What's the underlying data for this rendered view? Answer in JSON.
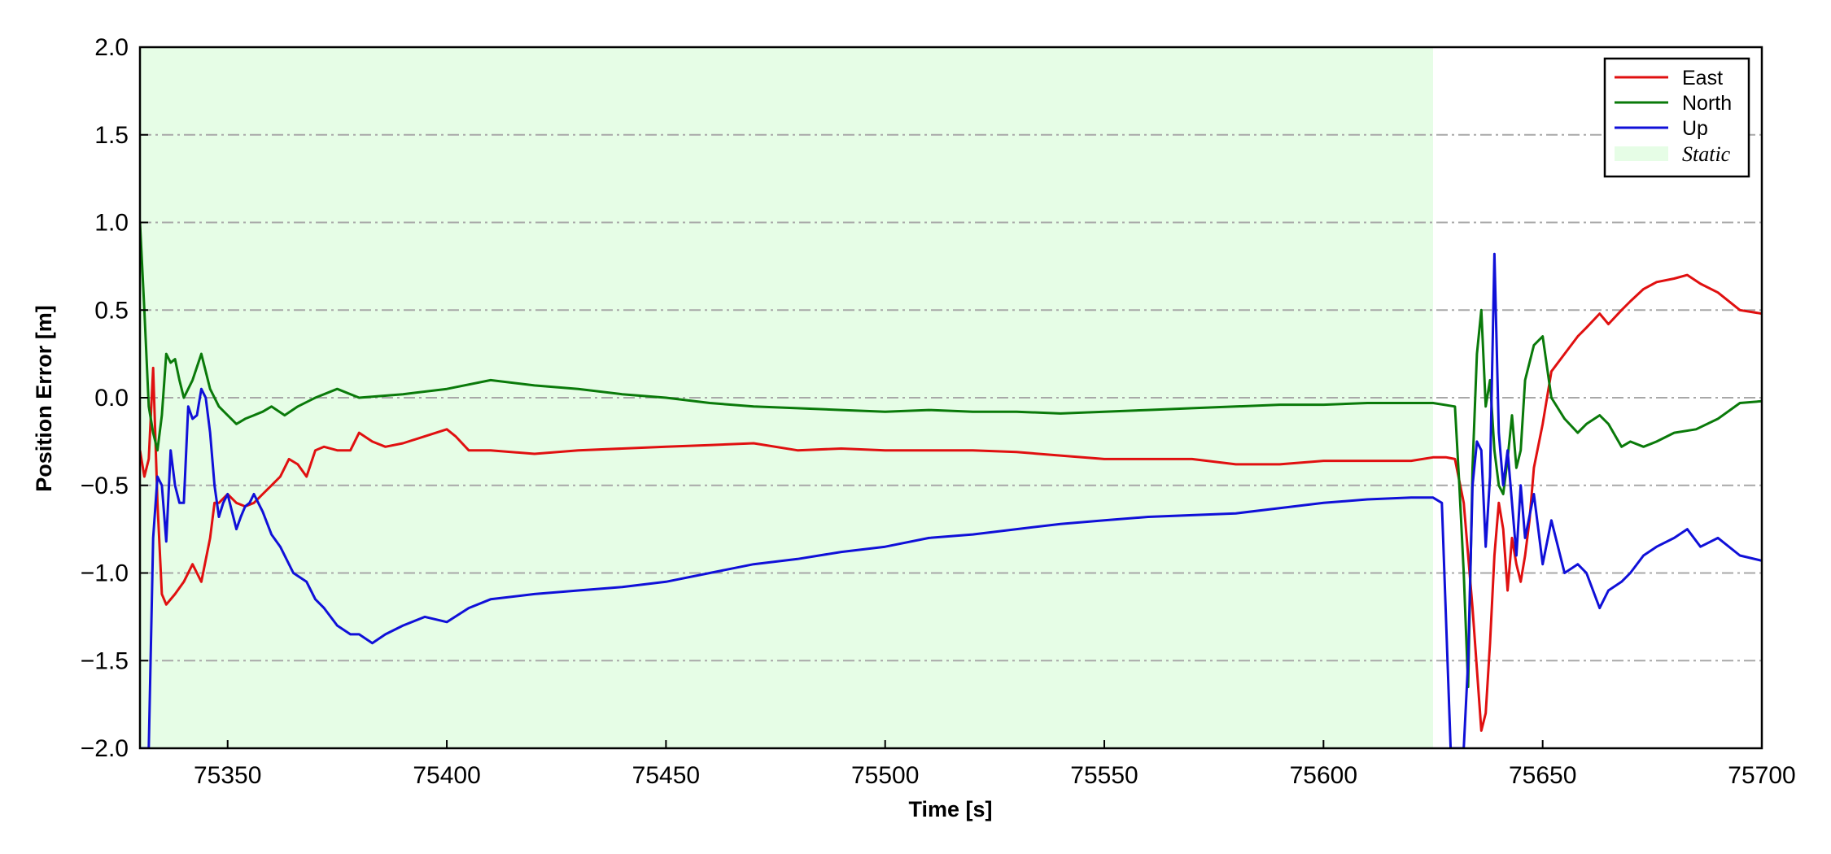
{
  "chart_data": {
    "type": "line",
    "xlabel": "Time [s]",
    "ylabel": "Position Error [m]",
    "xlim": [
      75330,
      75700
    ],
    "ylim": [
      -2.0,
      2.0
    ],
    "xticks": [
      75350,
      75400,
      75450,
      75500,
      75550,
      75600,
      75650,
      75700
    ],
    "xtick_labels": [
      "75350",
      "75400",
      "75450",
      "75500",
      "75550",
      "75600",
      "75650",
      "75700"
    ],
    "yticks": [
      2.0,
      1.5,
      1.0,
      0.5,
      0.0,
      -0.5,
      -1.0,
      -1.5,
      -2.0
    ],
    "ytick_labels": [
      "2.0",
      "1.5",
      "1.0",
      "0.5",
      "0.0",
      "−0.5",
      "−1.0",
      "−1.5",
      "−2.0"
    ],
    "grid": "horizontal dash-dot",
    "legend_position": "top-right",
    "shaded_region": {
      "name": "Static",
      "x": [
        75330,
        75625
      ],
      "color": "#e6fde6"
    },
    "series": [
      {
        "name": "East",
        "color": "#e01010",
        "x": [
          75330,
          75331,
          75332,
          75333,
          75334,
          75335,
          75336,
          75338,
          75340,
          75342,
          75344,
          75346,
          75347,
          75348,
          75350,
          75352,
          75354,
          75356,
          75358,
          75360,
          75362,
          75364,
          75366,
          75368,
          75370,
          75372,
          75375,
          75378,
          75380,
          75383,
          75386,
          75390,
          75395,
          75400,
          75402,
          75405,
          75410,
          75420,
          75430,
          75440,
          75450,
          75460,
          75470,
          75480,
          75490,
          75500,
          75510,
          75520,
          75530,
          75540,
          75550,
          75560,
          75570,
          75580,
          75590,
          75600,
          75610,
          75620,
          75625,
          75628,
          75630,
          75632,
          75634,
          75636,
          75637,
          75638,
          75639,
          75640,
          75641,
          75642,
          75643,
          75644,
          75645,
          75646,
          75647,
          75648,
          75650,
          75652,
          75655,
          75658,
          75660,
          75663,
          75665,
          75668,
          75670,
          75673,
          75676,
          75680,
          75683,
          75686,
          75690,
          75695,
          75700
        ],
        "y": [
          -0.3,
          -0.45,
          -0.35,
          0.17,
          -0.6,
          -1.12,
          -1.18,
          -1.12,
          -1.05,
          -0.95,
          -1.05,
          -0.8,
          -0.6,
          -0.6,
          -0.55,
          -0.6,
          -0.62,
          -0.6,
          -0.55,
          -0.5,
          -0.45,
          -0.35,
          -0.38,
          -0.45,
          -0.3,
          -0.28,
          -0.3,
          -0.3,
          -0.2,
          -0.25,
          -0.28,
          -0.26,
          -0.22,
          -0.18,
          -0.22,
          -0.3,
          -0.3,
          -0.32,
          -0.3,
          -0.29,
          -0.28,
          -0.27,
          -0.26,
          -0.3,
          -0.29,
          -0.3,
          -0.3,
          -0.3,
          -0.31,
          -0.33,
          -0.35,
          -0.35,
          -0.35,
          -0.38,
          -0.38,
          -0.36,
          -0.36,
          -0.36,
          -0.34,
          -0.34,
          -0.35,
          -0.6,
          -1.2,
          -1.9,
          -1.8,
          -1.4,
          -0.9,
          -0.6,
          -0.75,
          -1.1,
          -0.8,
          -0.95,
          -1.05,
          -0.9,
          -0.7,
          -0.4,
          -0.15,
          0.15,
          0.25,
          0.35,
          0.4,
          0.48,
          0.42,
          0.5,
          0.55,
          0.62,
          0.66,
          0.68,
          0.7,
          0.65,
          0.6,
          0.5,
          0.48
        ]
      },
      {
        "name": "North",
        "color": "#0a7a0a",
        "x": [
          75330,
          75331,
          75332,
          75333,
          75334,
          75335,
          75336,
          75337,
          75338,
          75339,
          75340,
          75342,
          75344,
          75346,
          75348,
          75350,
          75352,
          75354,
          75356,
          75358,
          75360,
          75363,
          75366,
          75370,
          75375,
          75380,
          75390,
          75400,
          75410,
          75420,
          75430,
          75440,
          75450,
          75460,
          75470,
          75480,
          75490,
          75500,
          75510,
          75520,
          75530,
          75540,
          75550,
          75560,
          75570,
          75580,
          75590,
          75600,
          75610,
          75620,
          75625,
          75630,
          75631,
          75632,
          75633,
          75634,
          75635,
          75636,
          75637,
          75638,
          75639,
          75640,
          75641,
          75642,
          75643,
          75644,
          75645,
          75646,
          75648,
          75650,
          75652,
          75655,
          75658,
          75660,
          75663,
          75665,
          75668,
          75670,
          75673,
          75676,
          75680,
          75685,
          75690,
          75695,
          75700
        ],
        "y": [
          1.0,
          0.5,
          -0.05,
          -0.2,
          -0.3,
          -0.1,
          0.25,
          0.2,
          0.22,
          0.1,
          0.0,
          0.1,
          0.25,
          0.05,
          -0.05,
          -0.1,
          -0.15,
          -0.12,
          -0.1,
          -0.08,
          -0.05,
          -0.1,
          -0.05,
          0.0,
          0.05,
          0.0,
          0.02,
          0.05,
          0.1,
          0.07,
          0.05,
          0.02,
          0.0,
          -0.03,
          -0.05,
          -0.06,
          -0.07,
          -0.08,
          -0.07,
          -0.08,
          -0.08,
          -0.09,
          -0.08,
          -0.07,
          -0.06,
          -0.05,
          -0.04,
          -0.04,
          -0.03,
          -0.03,
          -0.03,
          -0.05,
          -0.5,
          -1.0,
          -1.65,
          -0.4,
          0.25,
          0.5,
          -0.05,
          0.1,
          -0.3,
          -0.5,
          -0.55,
          -0.35,
          -0.1,
          -0.4,
          -0.3,
          0.1,
          0.3,
          0.35,
          0.0,
          -0.12,
          -0.2,
          -0.15,
          -0.1,
          -0.15,
          -0.28,
          -0.25,
          -0.28,
          -0.25,
          -0.2,
          -0.18,
          -0.12,
          -0.03,
          -0.02
        ]
      },
      {
        "name": "Up",
        "color": "#1010d8",
        "x": [
          75330,
          75332,
          75333,
          75334,
          75335,
          75336,
          75337,
          75338,
          75339,
          75340,
          75341,
          75342,
          75343,
          75344,
          75345,
          75346,
          75347,
          75348,
          75349,
          75350,
          75351,
          75352,
          75353,
          75354,
          75355,
          75356,
          75357,
          75358,
          75360,
          75362,
          75365,
          75368,
          75370,
          75372,
          75375,
          75378,
          75380,
          75383,
          75386,
          75390,
          75395,
          75400,
          75405,
          75410,
          75420,
          75430,
          75440,
          75450,
          75460,
          75470,
          75480,
          75490,
          75500,
          75510,
          75520,
          75530,
          75540,
          75550,
          75560,
          75570,
          75580,
          75590,
          75600,
          75610,
          75620,
          75625,
          75627,
          75629,
          75630,
          75631,
          75632,
          75633,
          75634,
          75635,
          75636,
          75637,
          75638,
          75639,
          75640,
          75641,
          75642,
          75643,
          75644,
          75645,
          75646,
          75648,
          75650,
          75652,
          75655,
          75658,
          75660,
          75663,
          75665,
          75668,
          75670,
          75673,
          75676,
          75680,
          75683,
          75686,
          75690,
          75695,
          75700
        ],
        "y": [
          -2.0,
          -2.0,
          -0.8,
          -0.45,
          -0.5,
          -0.82,
          -0.3,
          -0.5,
          -0.6,
          -0.6,
          -0.05,
          -0.12,
          -0.1,
          0.05,
          0.0,
          -0.2,
          -0.5,
          -0.68,
          -0.6,
          -0.55,
          -0.65,
          -0.75,
          -0.68,
          -0.62,
          -0.6,
          -0.55,
          -0.6,
          -0.65,
          -0.78,
          -0.85,
          -1.0,
          -1.05,
          -1.15,
          -1.2,
          -1.3,
          -1.35,
          -1.35,
          -1.4,
          -1.35,
          -1.3,
          -1.25,
          -1.28,
          -1.2,
          -1.15,
          -1.12,
          -1.1,
          -1.08,
          -1.05,
          -1.0,
          -0.95,
          -0.92,
          -0.88,
          -0.85,
          -0.8,
          -0.78,
          -0.75,
          -0.72,
          -0.7,
          -0.68,
          -0.67,
          -0.66,
          -0.63,
          -0.6,
          -0.58,
          -0.57,
          -0.57,
          -0.6,
          -2.0,
          -2.0,
          -2.0,
          -2.0,
          -1.5,
          -0.5,
          -0.25,
          -0.3,
          -0.85,
          -0.45,
          0.82,
          -0.2,
          -0.5,
          -0.3,
          -0.6,
          -0.9,
          -0.5,
          -0.8,
          -0.55,
          -0.95,
          -0.7,
          -1.0,
          -0.95,
          -1.0,
          -1.2,
          -1.1,
          -1.05,
          -1.0,
          -0.9,
          -0.85,
          -0.8,
          -0.75,
          -0.85,
          -0.8,
          -0.9,
          -0.93
        ]
      }
    ]
  }
}
